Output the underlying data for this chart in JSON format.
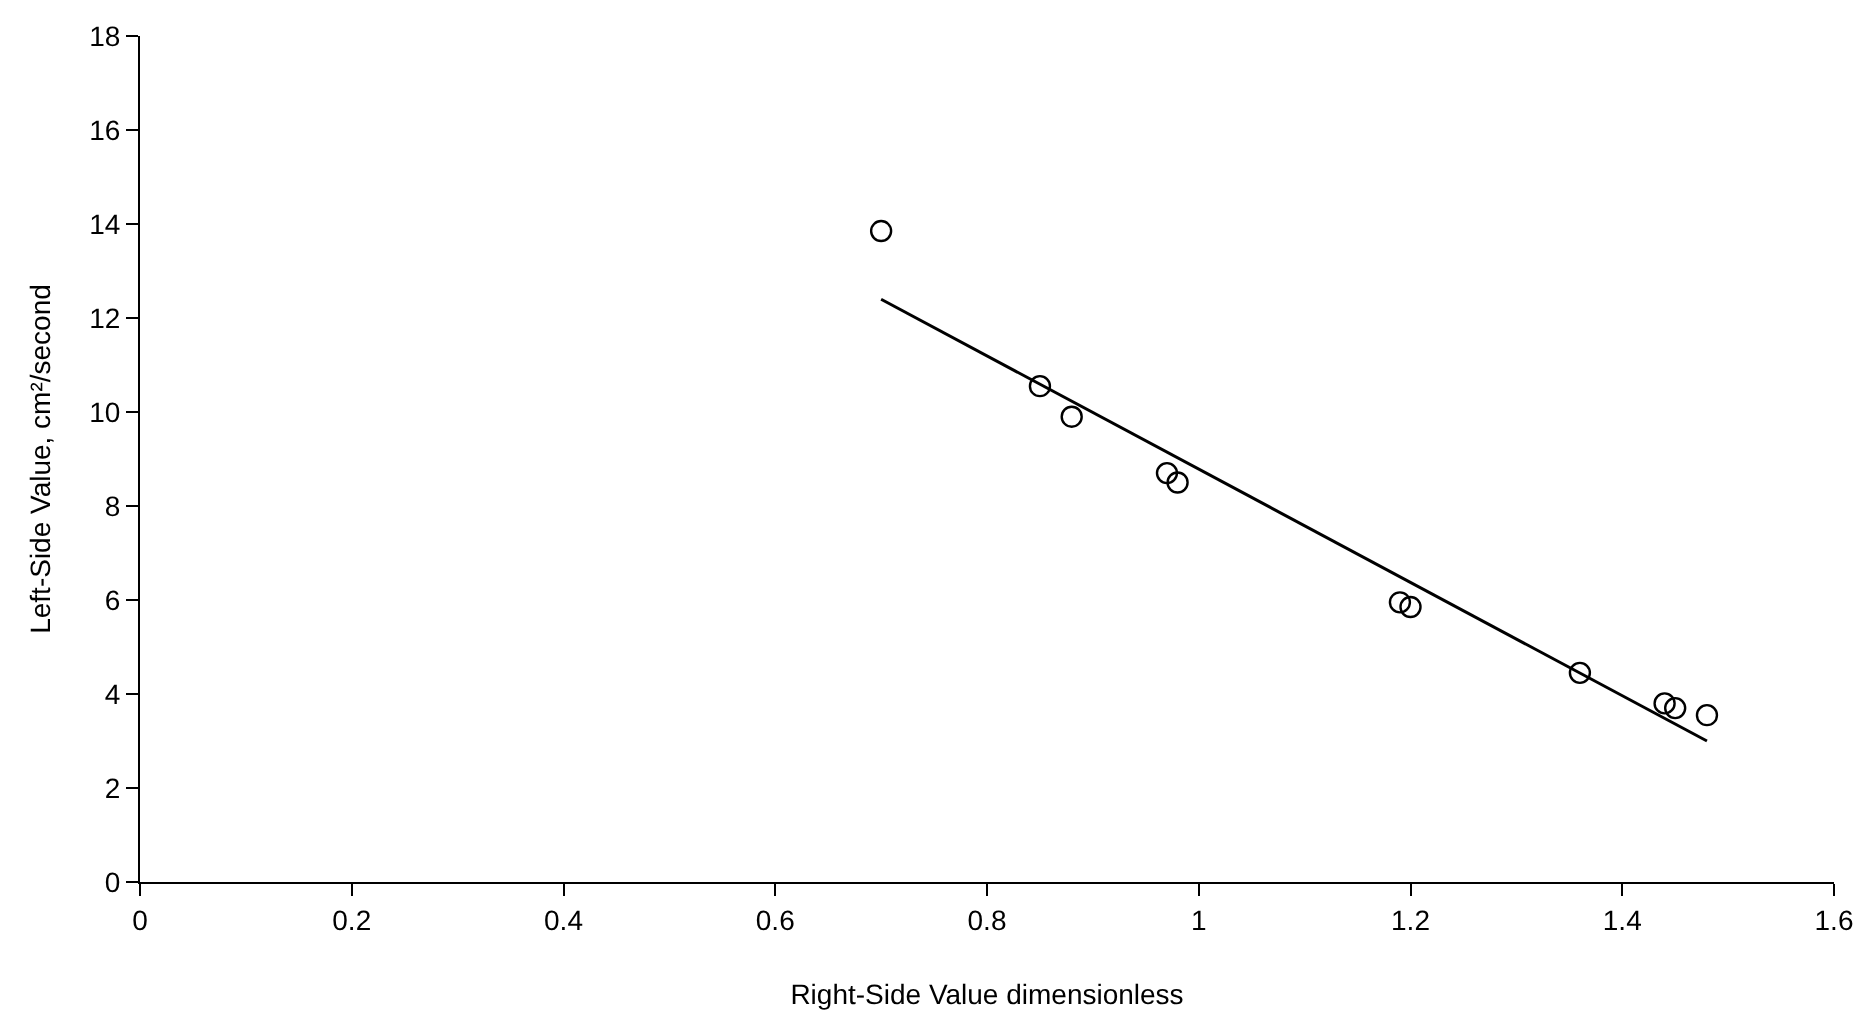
{
  "chart_data": {
    "type": "scatter",
    "xlabel": "Right-Side Value dimensionless",
    "ylabel": "Left-Side Value, cm²/second",
    "xlim": [
      0,
      1.6
    ],
    "xticks": [
      0,
      0.2,
      0.4,
      0.6,
      0.8,
      1,
      1.2,
      1.4,
      1.6
    ],
    "ylim": [
      0,
      18
    ],
    "yticks": [
      0,
      2,
      4,
      6,
      8,
      10,
      12,
      14,
      16,
      18
    ],
    "grid": false,
    "series": [
      {
        "marker": "circle",
        "color": "#000000",
        "x": [
          0.7,
          0.85,
          0.88,
          0.97,
          0.98,
          1.19,
          1.2,
          1.36,
          1.44,
          1.45,
          1.48
        ],
        "values": [
          13.85,
          10.55,
          9.9,
          8.7,
          8.5,
          5.95,
          5.85,
          4.45,
          3.8,
          3.7,
          3.55
        ]
      },
      {
        "type": "line",
        "color": "#000000",
        "x": [
          0.7,
          1.48
        ],
        "values": [
          12.4,
          3.0
        ],
        "line_style": "solid"
      }
    ]
  }
}
